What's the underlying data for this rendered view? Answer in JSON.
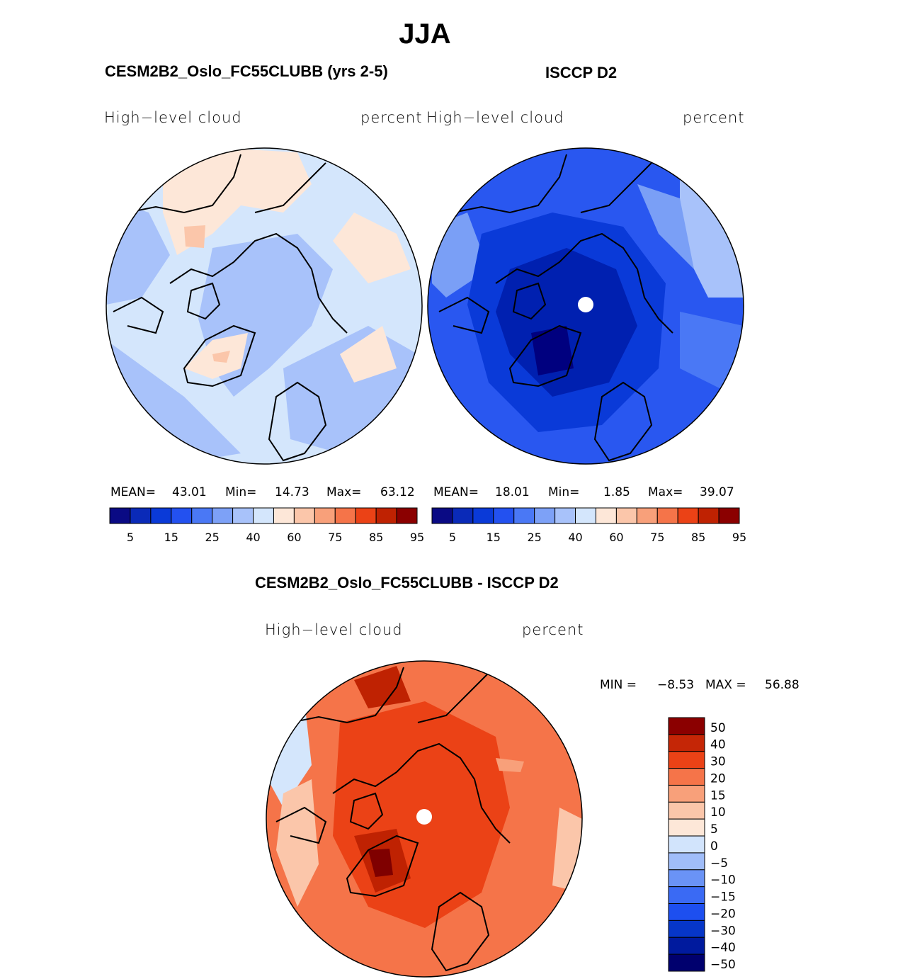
{
  "page_title": "JJA",
  "colors": {
    "scale_13": [
      "#00007f",
      "#0020b0",
      "#0a3ad8",
      "#2957f0",
      "#4a78f5",
      "#7a9ff6",
      "#a8c2fa",
      "#d4e6fc",
      "#fde7d8",
      "#fbc6aa",
      "#f8a07a",
      "#f57449",
      "#eb4216",
      "#bf2202",
      "#7f0000"
    ],
    "cb_main": [
      "#0a0a84",
      "#0a2ab8",
      "#0a3ad8",
      "#2351f0",
      "#4a78f5",
      "#7da1f7",
      "#a8c2fa",
      "#d4e6fc",
      "#fde7d8",
      "#fbc6aa",
      "#f8a07a",
      "#f57449",
      "#eb4216",
      "#bf2202",
      "#8b0000"
    ],
    "cb_diff": [
      "#00006e",
      "#001a9e",
      "#0636c8",
      "#1d4ff0",
      "#3a6af4",
      "#6a93f6",
      "#a0bdf9",
      "#d2e4fc",
      "#fde7d8",
      "#fbc6aa",
      "#f8a07a",
      "#f57449",
      "#eb4216",
      "#c52606",
      "#8b0000"
    ]
  },
  "panels": [
    {
      "title": "CESM2B2_Oslo_FC55CLUBB (yrs 2-5)",
      "variable": "High−level  cloud",
      "units": "percent",
      "mean_label": "MEAN=",
      "mean_value": "43.01",
      "min_label": "Min=",
      "min_value": "14.73",
      "max_label": "Max=",
      "max_value": "63.12"
    },
    {
      "title": "ISCCP D2",
      "variable": "High−level  cloud",
      "units": "percent",
      "mean_label": "MEAN=",
      "mean_value": "18.01",
      "min_label": "Min=",
      "min_value": "1.85",
      "max_label": "Max=",
      "max_value": "39.07"
    },
    {
      "title": "CESM2B2_Oslo_FC55CLUBB - ISCCP D2",
      "variable": "High−level  cloud",
      "units": "percent",
      "min_label": "MIN =",
      "min_value": "−8.53",
      "max_label": "MAX =",
      "max_value": "56.88"
    }
  ],
  "chart_data": [
    {
      "type": "heatmap",
      "projection": "north polar stereographic",
      "title": "CESM2B2_Oslo_FC55CLUBB (yrs 2-5)",
      "variable": "High-level cloud",
      "units": "percent",
      "stats": {
        "mean": 43.01,
        "min": 14.73,
        "max": 63.12
      },
      "colorbar_levels": [
        5,
        10,
        15,
        20,
        25,
        30,
        40,
        50,
        60,
        65,
        75,
        80,
        85,
        90,
        95
      ],
      "colorbar_tick_labels": [
        "5",
        "15",
        "25",
        "40",
        "60",
        "75",
        "85",
        "95"
      ]
    },
    {
      "type": "heatmap",
      "projection": "north polar stereographic",
      "title": "ISCCP D2",
      "variable": "High-level cloud",
      "units": "percent",
      "stats": {
        "mean": 18.01,
        "min": 1.85,
        "max": 39.07
      },
      "colorbar_levels": [
        5,
        10,
        15,
        20,
        25,
        30,
        40,
        50,
        60,
        65,
        75,
        80,
        85,
        90,
        95
      ],
      "colorbar_tick_labels": [
        "5",
        "15",
        "25",
        "40",
        "60",
        "75",
        "85",
        "95"
      ]
    },
    {
      "type": "heatmap",
      "projection": "north polar stereographic",
      "title": "CESM2B2_Oslo_FC55CLUBB - ISCCP D2",
      "variable": "High-level cloud",
      "units": "percent",
      "stats": {
        "min": -8.53,
        "max": 56.88
      },
      "colorbar_tick_labels": [
        "50",
        "40",
        "30",
        "20",
        "15",
        "10",
        "5",
        "0",
        "−5",
        "−10",
        "−15",
        "−20",
        "−30",
        "−40",
        "−50"
      ]
    }
  ]
}
